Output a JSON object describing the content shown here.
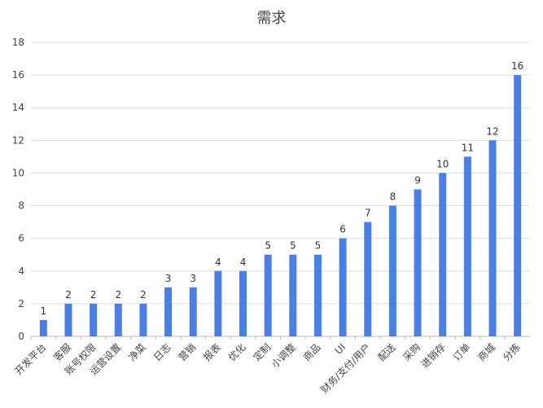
{
  "chart_data": {
    "type": "bar",
    "title": "需求",
    "xlabel": "",
    "ylabel": "",
    "ylim": [
      0,
      18
    ],
    "yticks": [
      0,
      2,
      4,
      6,
      8,
      10,
      12,
      14,
      16,
      18
    ],
    "grid": true,
    "legend": "none",
    "bar_color": "#4a7fe8",
    "categories": [
      "开发平台",
      "客服",
      "账号权限",
      "运营设置",
      "净菜",
      "日志",
      "营销",
      "报表",
      "优化",
      "定制",
      "小调整",
      "商品",
      "UI",
      "财务/支付/用户",
      "配送",
      "采购",
      "进销存",
      "订单",
      "商城",
      "分拣"
    ],
    "values": [
      1,
      2,
      2,
      2,
      2,
      3,
      3,
      4,
      4,
      5,
      5,
      5,
      6,
      7,
      8,
      9,
      10,
      11,
      12,
      16
    ]
  }
}
